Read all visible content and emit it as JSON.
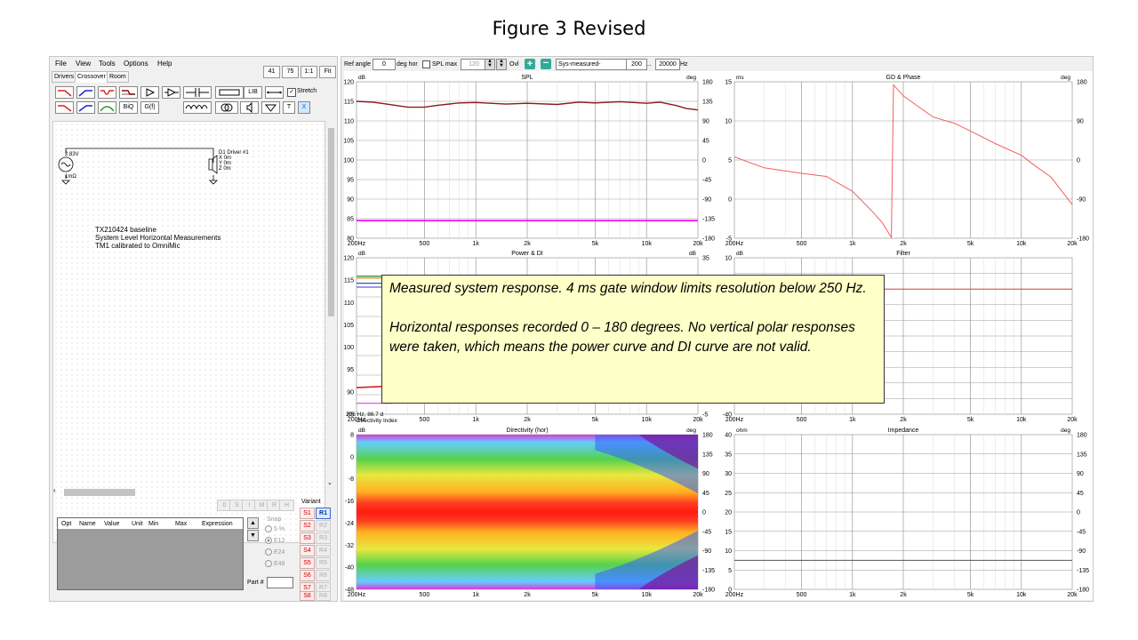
{
  "figure_title": "Figure 3 Revised",
  "menu": [
    "File",
    "View",
    "Tools",
    "Options",
    "Help"
  ],
  "tabs": [
    "Drivers",
    "Crossover",
    "Room"
  ],
  "zoom_buttons": [
    "41",
    "75",
    "1:1",
    "Fit"
  ],
  "toolbar": {
    "biq": "BiQ",
    "gf": "G(f)",
    "lib": "LIB",
    "stretch_label": "Stretch",
    "t": "T",
    "x": "X"
  },
  "schematic": {
    "source_voltage": "2.83V",
    "source_impedance": "1mΩ",
    "driver_name": "D1 Driver #1",
    "driver_x": "X 0m",
    "driver_y": "Y 0m",
    "driver_z": "Z 0m",
    "note": [
      "TX210424 baseline",
      "System Level Horizontal Measurements",
      "TM1 calibrated to OmniMic"
    ]
  },
  "param_table": {
    "headers": [
      "Opt",
      "Name",
      "Value",
      "Unit",
      "Min",
      "Max",
      "Expression"
    ]
  },
  "step_buttons": [
    "0",
    "S",
    "I",
    "M",
    "R",
    "H"
  ],
  "snap": {
    "label": "Snap",
    "options": [
      "5 %",
      "E12",
      "E24",
      "E48"
    ],
    "selected": "E12"
  },
  "part_label": "Part #",
  "variant": {
    "label": "Variant",
    "s": [
      "S1",
      "S2",
      "S3",
      "S4",
      "S5",
      "S6",
      "S7",
      "S8"
    ],
    "r": [
      "R1",
      "R2",
      "R3",
      "R4",
      "R5",
      "R6",
      "R7",
      "R8"
    ]
  },
  "right_toolbar": {
    "ref_angle_label": "Ref angle",
    "ref_angle_value": "0",
    "deg_hor": "deg hor",
    "spl_max_label": "SPL max",
    "spl_max_value": "120",
    "ovl": "Ovl",
    "measurement_name": "Sys-measured-HorzOnly",
    "freq_from": "200",
    "freq_sep": "...",
    "freq_to": "20000",
    "hz": "Hz"
  },
  "x_ticks": [
    "200Hz",
    "500",
    "1k",
    "2k",
    "5k",
    "10k",
    "20k"
  ],
  "charts": {
    "spl": {
      "title": "SPL",
      "left_unit": "dB",
      "right_unit": "deg",
      "left_ticks": [
        "120",
        "115",
        "110",
        "105",
        "100",
        "95",
        "90",
        "85",
        "80"
      ],
      "right_ticks": [
        "180",
        "135",
        "90",
        "45",
        "0",
        "-45",
        "-90",
        "-135",
        "-180"
      ]
    },
    "gd": {
      "title": "GD & Phase",
      "left_unit": "ms",
      "right_unit": "deg",
      "left_ticks": [
        "15",
        "10",
        "5",
        "0",
        "-5"
      ],
      "right_ticks": [
        "180",
        "90",
        "0",
        "-90",
        "-180"
      ]
    },
    "power": {
      "title": "Power & DI",
      "left_unit": "dB",
      "right_unit": "dB",
      "left_ticks": [
        "120",
        "115",
        "110",
        "105",
        "100",
        "95",
        "90",
        "85"
      ],
      "right_ticks": [
        "35",
        "-5"
      ],
      "readout": "206 Hz, 86.7 d",
      "di_label": "Directivity Index"
    },
    "filter": {
      "title": "Filter",
      "left_unit": "dB",
      "left_ticks": [
        "10",
        "-40"
      ]
    },
    "directivity": {
      "title": "Directivity (hor)",
      "left_unit": "dB",
      "right_unit": "deg",
      "left_ticks": [
        "8",
        "0",
        "-8",
        "-16",
        "-24",
        "-32",
        "-40",
        "-48"
      ],
      "right_ticks": [
        "180",
        "135",
        "90",
        "45",
        "0",
        "-45",
        "-90",
        "-135",
        "-180"
      ]
    },
    "impedance": {
      "title": "Impedance",
      "left_unit": "ohm",
      "right_unit": "deg",
      "left_ticks": [
        "40",
        "35",
        "30",
        "25",
        "20",
        "15",
        "10",
        "5",
        "0"
      ],
      "right_ticks": [
        "180",
        "135",
        "90",
        "45",
        "0",
        "-45",
        "-90",
        "-135",
        "-180"
      ]
    }
  },
  "callout": {
    "line1": "Measured system response.  4 ms gate window limits resolution below 250 Hz.",
    "line2": "Horizontal responses recorded 0 – 180 degrees.  No vertical polar responses were taken, which means the power curve and DI curve are not valid."
  },
  "colors": {
    "spl_curve": "#8b1a1a",
    "spl_ref": "#ff00ff",
    "gd_curve": "#f06060",
    "filter_line": "#d04040"
  },
  "chart_data": [
    {
      "type": "line",
      "title": "SPL",
      "xlabel": "",
      "ylabel": "dB",
      "xlim": [
        200,
        20000
      ],
      "ylim": [
        80,
        120
      ],
      "series": [
        {
          "x": [
            200,
            250,
            300,
            400,
            500,
            600,
            800,
            1000,
            1500,
            2000,
            3000,
            4000,
            5000,
            7000,
            10000,
            12000,
            15000,
            17000,
            20000
          ],
          "values": [
            115,
            114.8,
            114.3,
            113.5,
            113.5,
            114,
            114.6,
            114.7,
            114.3,
            114.5,
            114.2,
            114.8,
            114.6,
            114.9,
            114.5,
            114.8,
            113.9,
            113.2,
            112.8
          ]
        },
        {
          "x": [
            200,
            20000
          ],
          "values": [
            84.5,
            84.5
          ]
        }
      ]
    },
    {
      "type": "line",
      "title": "GD & Phase",
      "xlabel": "",
      "ylabel": "ms",
      "xlim": [
        200,
        20000
      ],
      "ylim": [
        -5,
        15
      ],
      "series": [
        {
          "x": [
            200,
            300,
            500,
            700,
            1000,
            1300,
            1500,
            1700,
            1750,
            2000,
            2500,
            3000,
            4000,
            5000,
            7000,
            10000,
            12000,
            15000,
            20000
          ],
          "values": [
            5.4,
            4,
            3.3,
            2.9,
            1,
            -1.5,
            -3,
            -4.9,
            14.6,
            13.2,
            11.7,
            10.5,
            9.7,
            8.7,
            7.1,
            5.6,
            4.3,
            2.8,
            -0.7
          ]
        }
      ]
    },
    {
      "type": "line",
      "title": "Filter",
      "xlabel": "",
      "ylabel": "dB",
      "xlim": [
        200,
        20000
      ],
      "ylim": [
        -40,
        10
      ],
      "series": [
        {
          "x": [
            200,
            20000
          ],
          "values": [
            0,
            0
          ]
        }
      ]
    },
    {
      "type": "heatmap",
      "title": "Directivity (hor)",
      "xlim": [
        200,
        20000
      ],
      "ylim": [
        -180,
        180
      ],
      "color_range_db": [
        -48,
        8
      ]
    },
    {
      "type": "line",
      "title": "Impedance",
      "ylabel": "ohm",
      "xlim": [
        200,
        20000
      ],
      "ylim": [
        0,
        40
      ],
      "series": [
        {
          "x": [
            200,
            20000
          ],
          "values": [
            7.5,
            7.5
          ]
        }
      ]
    }
  ]
}
